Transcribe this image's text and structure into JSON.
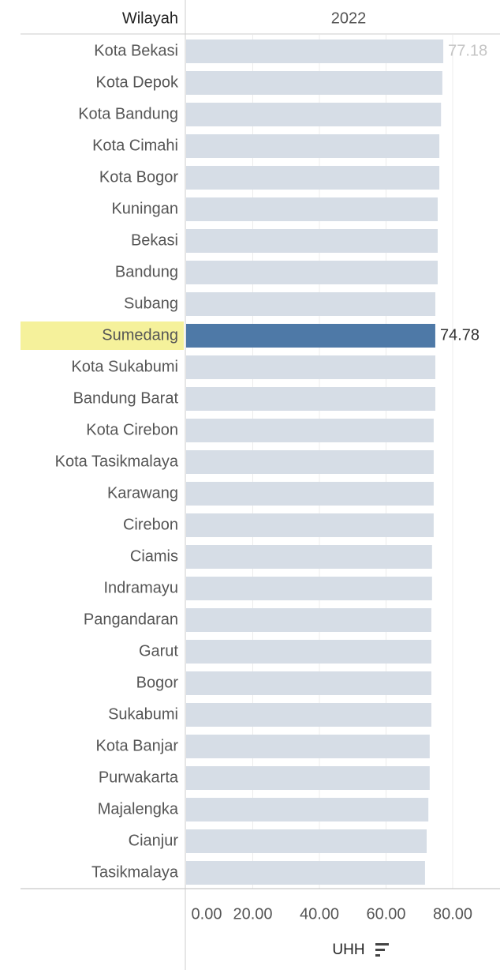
{
  "chart_data": {
    "type": "bar",
    "row_header": "Wilayah",
    "column_header": "2022",
    "xlabel": "UHH",
    "categories": [
      "Kota Bekasi",
      "Kota Depok",
      "Kota Bandung",
      "Kota Cimahi",
      "Kota Bogor",
      "Kuningan",
      "Bekasi",
      "Bandung",
      "Subang",
      "Sumedang",
      "Kota Sukabumi",
      "Bandung Barat",
      "Kota Cirebon",
      "Kota Tasikmalaya",
      "Karawang",
      "Cirebon",
      "Ciamis",
      "Indramayu",
      "Pangandaran",
      "Garut",
      "Bogor",
      "Sukabumi",
      "Kota Banjar",
      "Purwakarta",
      "Majalengka",
      "Cianjur",
      "Tasikmalaya"
    ],
    "values": [
      77.18,
      76.9,
      76.5,
      76.0,
      76.0,
      75.5,
      75.5,
      75.5,
      74.8,
      74.78,
      74.8,
      74.8,
      74.3,
      74.3,
      74.3,
      74.3,
      73.8,
      73.8,
      73.6,
      73.6,
      73.6,
      73.6,
      73.1,
      73.1,
      72.7,
      72.2,
      71.7
    ],
    "value_labels": [
      "77.18",
      null,
      null,
      null,
      null,
      null,
      null,
      null,
      null,
      "74.78",
      null,
      null,
      null,
      null,
      null,
      null,
      null,
      null,
      null,
      null,
      null,
      null,
      null,
      null,
      null,
      null,
      null
    ],
    "xlim": [
      0,
      92
    ],
    "xticks": [
      {
        "value": 0,
        "label": "0.00"
      },
      {
        "value": 20,
        "label": "20.00"
      },
      {
        "value": 40,
        "label": "40.00"
      },
      {
        "value": 60,
        "label": "60.00"
      },
      {
        "value": 80,
        "label": "80.00"
      }
    ],
    "grid": true,
    "color": "#d6dde6",
    "highlight_index": 9,
    "highlight_color": "#4e79a7",
    "highlight_row_color": "#f5f19b"
  }
}
